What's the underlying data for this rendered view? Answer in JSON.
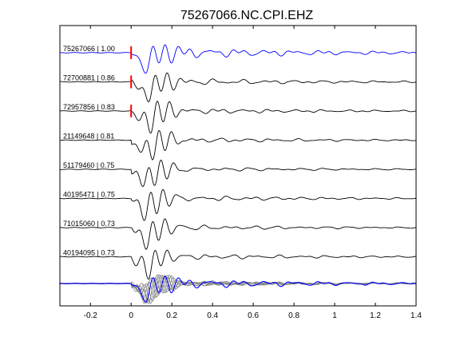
{
  "chart_data": {
    "type": "line",
    "title": "75267066.NC.CPI.EHZ",
    "xlim": [
      -0.35,
      1.4
    ],
    "x_ticks": [
      -0.2,
      0,
      0.2,
      0.4,
      0.6,
      0.8,
      1,
      1.2,
      1.4
    ],
    "x_tick_labels": [
      "-0.2",
      "0",
      "0.2",
      "0.4",
      "0.6",
      "0.8",
      "1",
      "1.2",
      "1.4"
    ],
    "grid": false,
    "colors": {
      "reference": "#0000ff",
      "trace": "#000000",
      "stack": "#808080",
      "pick": "#ff0000"
    },
    "traces": [
      {
        "label": "75267066 | 1.00",
        "color": "#0000ff",
        "pick": true,
        "seed": 1,
        "amp": 1.0,
        "noise": 0.55
      },
      {
        "label": "72700881 | 0.86",
        "color": "#000000",
        "pick": true,
        "seed": 2,
        "amp": 1.0,
        "noise": 0.35
      },
      {
        "label": "72957856 | 0.83",
        "color": "#000000",
        "pick": true,
        "seed": 3,
        "amp": 1.0,
        "noise": 0.3
      },
      {
        "label": "21149648 | 0.81",
        "color": "#000000",
        "pick": false,
        "seed": 4,
        "amp": 1.0,
        "noise": 0.28
      },
      {
        "label": "51179460 | 0.75",
        "color": "#000000",
        "pick": false,
        "seed": 5,
        "amp": 1.0,
        "noise": 0.25
      },
      {
        "label": "40195471 | 0.75",
        "color": "#000000",
        "pick": false,
        "seed": 6,
        "amp": 1.0,
        "noise": 0.3
      },
      {
        "label": "71015060 | 0.73",
        "color": "#000000",
        "pick": false,
        "seed": 7,
        "amp": 1.0,
        "noise": 0.28
      },
      {
        "label": "40194095 | 0.73",
        "color": "#000000",
        "pick": false,
        "seed": 8,
        "amp": 1.0,
        "noise": 0.3
      }
    ]
  }
}
